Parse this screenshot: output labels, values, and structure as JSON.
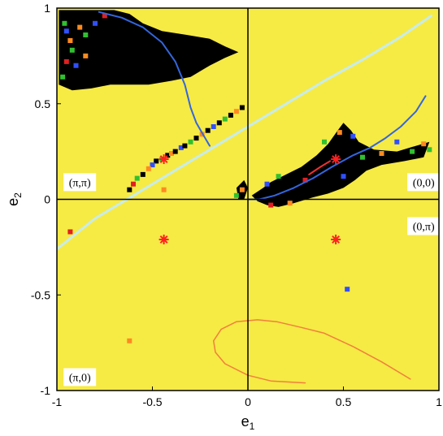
{
  "chart_data": {
    "type": "scatter",
    "title": "",
    "xlabel": "e",
    "xlabel_sub": "1",
    "ylabel": "e",
    "ylabel_sub": "2",
    "xlim": [
      -1,
      1
    ],
    "ylim": [
      -1,
      1
    ],
    "x_ticks": [
      "-1",
      "-0.5",
      "0",
      "0.5",
      "1"
    ],
    "y_ticks": [
      "1",
      "0.5",
      "0",
      "-0.5",
      "-1"
    ],
    "x_tick_values": [
      -1,
      -0.5,
      0,
      0.5,
      1
    ],
    "y_tick_values": [
      1,
      0.5,
      0,
      -0.5,
      -1
    ],
    "grid": false,
    "background_color": "#f6ea45",
    "region_color": "#000000",
    "region_labels": [
      {
        "text": "(π,π)",
        "x": -0.88,
        "y": 0.09
      },
      {
        "text": "(0,0)",
        "x": 0.92,
        "y": 0.09
      },
      {
        "text": "(0,π)",
        "x": 0.92,
        "y": -0.14
      },
      {
        "text": "(π,0)",
        "x": -0.88,
        "y": -0.93
      }
    ],
    "fixed_points": [
      {
        "x": -0.44,
        "y": 0.21
      },
      {
        "x": 0.46,
        "y": 0.21
      },
      {
        "x": -0.44,
        "y": -0.21
      },
      {
        "x": 0.46,
        "y": -0.21
      }
    ],
    "fixed_point_color": "#ff2020",
    "series": [
      {
        "kind": "region",
        "color": "#000000",
        "points": [
          [
            -0.99,
            0.99
          ],
          [
            -0.7,
            0.99
          ],
          [
            -0.62,
            0.97
          ],
          [
            -0.55,
            0.92
          ],
          [
            -0.45,
            0.88
          ],
          [
            -0.32,
            0.86
          ],
          [
            -0.2,
            0.84
          ],
          [
            -0.12,
            0.8
          ],
          [
            -0.05,
            0.77
          ],
          [
            -0.12,
            0.74
          ],
          [
            -0.2,
            0.7
          ],
          [
            -0.3,
            0.64
          ],
          [
            -0.4,
            0.62
          ],
          [
            -0.52,
            0.6
          ],
          [
            -0.62,
            0.6
          ],
          [
            -0.72,
            0.6
          ],
          [
            -0.82,
            0.58
          ],
          [
            -0.92,
            0.57
          ],
          [
            -0.99,
            0.6
          ]
        ]
      },
      {
        "kind": "region",
        "color": "#000000",
        "points": [
          [
            0.02,
            0.02
          ],
          [
            0.08,
            0.06
          ],
          [
            0.12,
            0.09
          ],
          [
            0.2,
            0.13
          ],
          [
            0.28,
            0.17
          ],
          [
            0.36,
            0.23
          ],
          [
            0.42,
            0.29
          ],
          [
            0.47,
            0.36
          ],
          [
            0.5,
            0.4
          ],
          [
            0.54,
            0.36
          ],
          [
            0.58,
            0.3
          ],
          [
            0.66,
            0.26
          ],
          [
            0.78,
            0.25
          ],
          [
            0.88,
            0.28
          ],
          [
            0.95,
            0.3
          ],
          [
            0.92,
            0.22
          ],
          [
            0.82,
            0.2
          ],
          [
            0.7,
            0.18
          ],
          [
            0.62,
            0.15
          ],
          [
            0.56,
            0.1
          ],
          [
            0.5,
            0.06
          ],
          [
            0.42,
            0.03
          ],
          [
            0.34,
            0.01
          ],
          [
            0.24,
            -0.02
          ],
          [
            0.16,
            -0.04
          ],
          [
            0.1,
            -0.03
          ],
          [
            0.05,
            -0.01
          ]
        ]
      },
      {
        "kind": "region",
        "color": "#000000",
        "points": [
          [
            -0.06,
            0.06
          ],
          [
            -0.02,
            0.1
          ],
          [
            0.0,
            0.06
          ],
          [
            -0.02,
            0.0
          ],
          [
            -0.05,
            0.0
          ]
        ]
      },
      {
        "kind": "line",
        "color": "#3366dd",
        "width": 2,
        "points": [
          [
            -0.78,
            0.98
          ],
          [
            -0.66,
            0.95
          ],
          [
            -0.55,
            0.9
          ],
          [
            -0.45,
            0.82
          ],
          [
            -0.38,
            0.72
          ],
          [
            -0.33,
            0.6
          ],
          [
            -0.3,
            0.48
          ],
          [
            -0.27,
            0.4
          ],
          [
            -0.23,
            0.33
          ],
          [
            -0.2,
            0.28
          ]
        ]
      },
      {
        "kind": "line",
        "color": "#3366dd",
        "width": 2,
        "points": [
          [
            0.0,
            0.0
          ],
          [
            0.06,
            0.0
          ],
          [
            0.14,
            0.02
          ],
          [
            0.24,
            0.06
          ],
          [
            0.34,
            0.11
          ],
          [
            0.44,
            0.17
          ],
          [
            0.55,
            0.23
          ],
          [
            0.64,
            0.27
          ],
          [
            0.72,
            0.32
          ],
          [
            0.8,
            0.38
          ],
          [
            0.88,
            0.46
          ],
          [
            0.93,
            0.54
          ]
        ]
      },
      {
        "kind": "line",
        "color": "#c8ecec",
        "width": 3,
        "points": [
          [
            -1.0,
            -0.26
          ],
          [
            -0.8,
            -0.1
          ],
          [
            -0.6,
            0.02
          ],
          [
            -0.4,
            0.14
          ],
          [
            -0.2,
            0.26
          ],
          [
            0.0,
            0.38
          ],
          [
            0.2,
            0.5
          ],
          [
            0.4,
            0.62
          ],
          [
            0.6,
            0.73
          ],
          [
            0.8,
            0.85
          ],
          [
            0.96,
            0.96
          ]
        ]
      },
      {
        "kind": "line",
        "color": "#f0803a",
        "width": 1.5,
        "points": [
          [
            0.85,
            -0.94
          ],
          [
            0.7,
            -0.85
          ],
          [
            0.55,
            -0.77
          ],
          [
            0.4,
            -0.7
          ],
          [
            0.28,
            -0.67
          ],
          [
            0.15,
            -0.64
          ],
          [
            0.05,
            -0.63
          ],
          [
            -0.06,
            -0.64
          ],
          [
            -0.14,
            -0.68
          ],
          [
            -0.18,
            -0.74
          ],
          [
            -0.17,
            -0.8
          ],
          [
            -0.12,
            -0.86
          ],
          [
            0.0,
            -0.92
          ],
          [
            0.12,
            -0.95
          ],
          [
            0.3,
            -0.96
          ]
        ]
      },
      {
        "kind": "line",
        "color": "#ee3030",
        "width": 2,
        "points": [
          [
            0.32,
            0.13
          ],
          [
            0.38,
            0.17
          ],
          [
            0.43,
            0.2
          ]
        ]
      },
      {
        "kind": "points",
        "name": "",
        "colors": [
          "#000000",
          "#3050ff",
          "#30c030",
          "#ff8a20",
          "#e02020"
        ],
        "points": [
          [
            -0.48,
            0.2,
            0
          ],
          [
            -0.45,
            0.21,
            2
          ],
          [
            -0.42,
            0.23,
            0
          ],
          [
            -0.4,
            0.24,
            3
          ],
          [
            -0.38,
            0.25,
            0
          ],
          [
            -0.35,
            0.27,
            1
          ],
          [
            -0.33,
            0.28,
            0
          ],
          [
            -0.3,
            0.3,
            2
          ],
          [
            -0.27,
            0.32,
            0
          ],
          [
            -0.24,
            0.34,
            3
          ],
          [
            -0.21,
            0.36,
            0
          ],
          [
            -0.18,
            0.38,
            1
          ],
          [
            -0.15,
            0.4,
            0
          ],
          [
            -0.12,
            0.42,
            2
          ],
          [
            -0.09,
            0.44,
            0
          ],
          [
            -0.06,
            0.46,
            3
          ],
          [
            -0.03,
            0.48,
            0
          ],
          [
            -0.5,
            0.18,
            1
          ],
          [
            -0.52,
            0.16,
            3
          ],
          [
            -0.55,
            0.13,
            0
          ],
          [
            -0.58,
            0.11,
            2
          ],
          [
            -0.6,
            0.08,
            4
          ],
          [
            -0.62,
            0.05,
            0
          ],
          [
            -0.44,
            0.05,
            3
          ],
          [
            -0.96,
            0.92,
            2
          ],
          [
            -0.95,
            0.88,
            1
          ],
          [
            -0.93,
            0.83,
            3
          ],
          [
            -0.92,
            0.78,
            2
          ],
          [
            -0.95,
            0.72,
            4
          ],
          [
            -0.9,
            0.7,
            1
          ],
          [
            -0.88,
            0.9,
            3
          ],
          [
            -0.85,
            0.86,
            2
          ],
          [
            -0.8,
            0.92,
            1
          ],
          [
            -0.75,
            0.96,
            4
          ],
          [
            -0.85,
            0.75,
            3
          ],
          [
            -0.97,
            0.64,
            2
          ],
          [
            -0.06,
            0.02,
            2
          ],
          [
            -0.03,
            0.05,
            3
          ],
          [
            0.1,
            0.08,
            1
          ],
          [
            0.16,
            0.12,
            2
          ],
          [
            0.3,
            0.1,
            4
          ],
          [
            0.4,
            0.3,
            2
          ],
          [
            0.48,
            0.35,
            3
          ],
          [
            0.55,
            0.33,
            1
          ],
          [
            0.6,
            0.22,
            2
          ],
          [
            0.7,
            0.24,
            3
          ],
          [
            0.78,
            0.3,
            1
          ],
          [
            0.86,
            0.25,
            2
          ],
          [
            0.92,
            0.29,
            3
          ],
          [
            0.95,
            0.26,
            2
          ],
          [
            0.5,
            0.12,
            1
          ],
          [
            0.22,
            -0.02,
            3
          ],
          [
            0.12,
            -0.03,
            4
          ],
          [
            0.52,
            -0.47,
            1
          ],
          [
            -0.93,
            -0.17,
            4
          ],
          [
            -0.62,
            -0.74,
            3
          ]
        ]
      }
    ]
  }
}
